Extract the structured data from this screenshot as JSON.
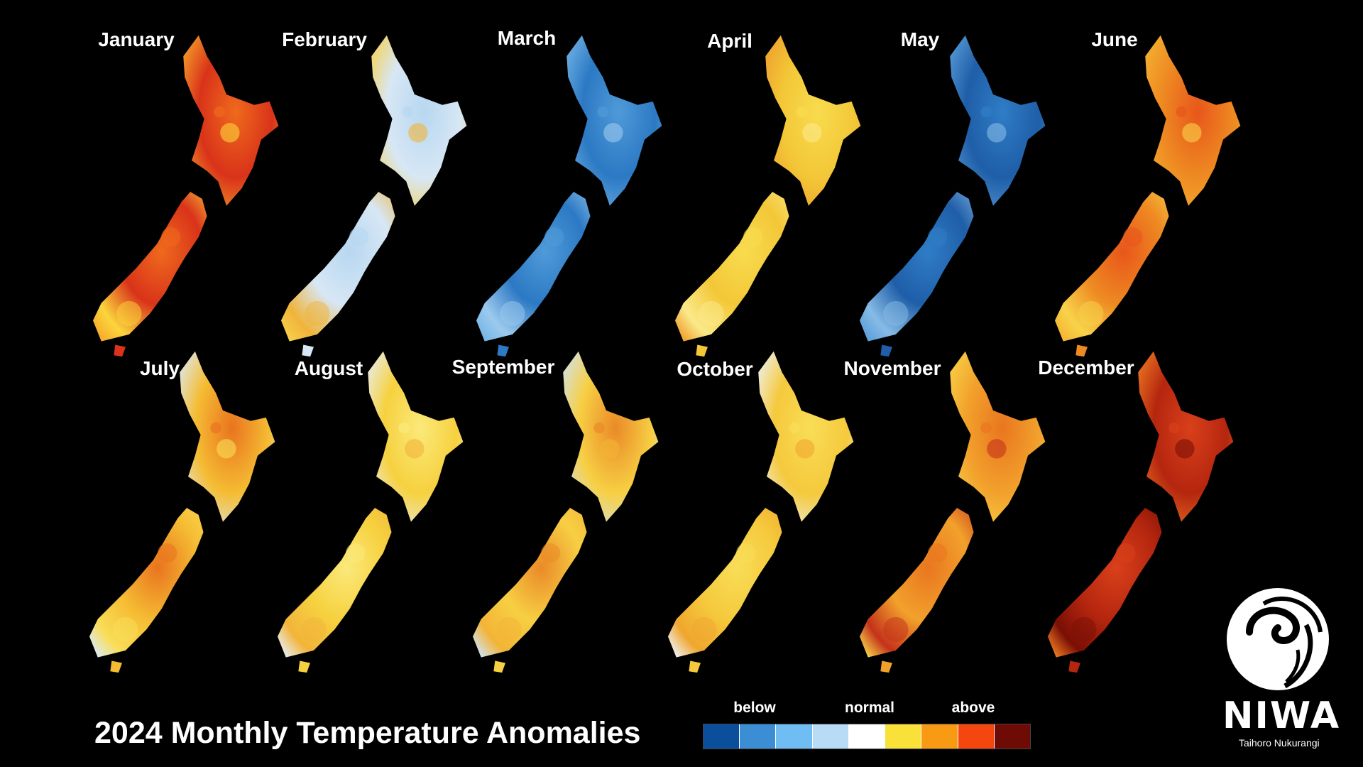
{
  "title": "2024 Monthly Temperature Anomalies",
  "months": [
    {
      "name": "January",
      "palette": [
        "#d9331a",
        "#ef6a1c",
        "#f7a82a",
        "#fbd53c"
      ]
    },
    {
      "name": "February",
      "palette": [
        "#d7e7f5",
        "#b7d7f0",
        "#f7d04c",
        "#f0b43a"
      ]
    },
    {
      "name": "March",
      "palette": [
        "#2c79c4",
        "#4f9ad8",
        "#74b5e6",
        "#9ccaee"
      ]
    },
    {
      "name": "April",
      "palette": [
        "#f3c737",
        "#f8dc4e",
        "#ee9d2d",
        "#fbe98a"
      ]
    },
    {
      "name": "May",
      "palette": [
        "#1f5ea8",
        "#2f7dc6",
        "#5a9fd9",
        "#86bbe6"
      ]
    },
    {
      "name": "June",
      "palette": [
        "#ee8a22",
        "#e8561b",
        "#f5b431",
        "#f8d34a"
      ]
    },
    {
      "name": "July",
      "palette": [
        "#f5bc33",
        "#e9741f",
        "#dcecf7",
        "#f9dd57"
      ]
    },
    {
      "name": "August",
      "palette": [
        "#f6d13f",
        "#fbe97b",
        "#e8eef5",
        "#f2b43a"
      ]
    },
    {
      "name": "September",
      "palette": [
        "#f7cf43",
        "#ea8a28",
        "#cfe3f3",
        "#f3b436"
      ]
    },
    {
      "name": "October",
      "palette": [
        "#f5c93c",
        "#f9dd58",
        "#eef2f6",
        "#f0a62f"
      ]
    },
    {
      "name": "November",
      "palette": [
        "#f2a12c",
        "#e9761f",
        "#f8d448",
        "#c4321a"
      ]
    },
    {
      "name": "December",
      "palette": [
        "#b5260f",
        "#d9401a",
        "#ee7c22",
        "#7a0f05"
      ]
    }
  ],
  "legend": {
    "labels": {
      "below": "below",
      "normal": "normal",
      "above": "above"
    },
    "colors": [
      "#0b4f9c",
      "#3b8ed3",
      "#6fbdf2",
      "#b8dcf6",
      "#ffffff",
      "#f9e13a",
      "#f99a15",
      "#f4460e",
      "#6e0b04"
    ]
  },
  "logo": {
    "name": "NIWA",
    "subtitle": "Taihoro Nukurangi"
  }
}
